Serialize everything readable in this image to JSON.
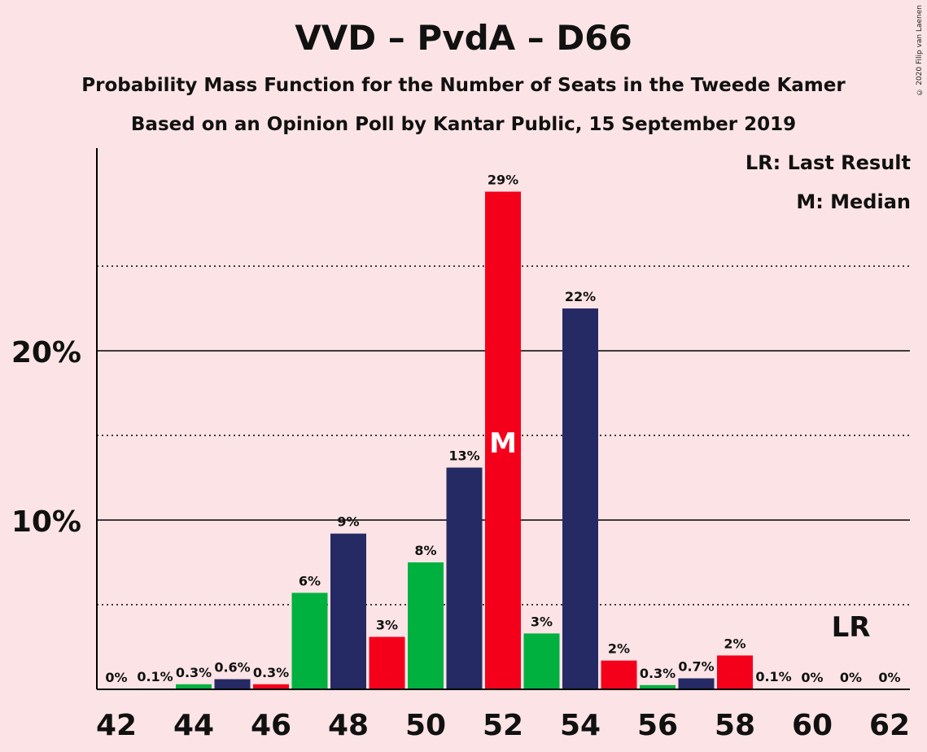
{
  "chart_data": {
    "type": "bar",
    "title": "VVD – PvdA – D66",
    "subtitle": "Probability Mass Function for the Number of Seats in the Tweede Kamer",
    "subtitle2": "Based on an Opinion Poll by Kantar Public, 15 September 2019",
    "copyright": "© 2020 Filip van Laenen",
    "legend": [
      "LR: Last Result",
      "M: Median"
    ],
    "x": [
      42,
      43,
      44,
      45,
      46,
      47,
      48,
      49,
      50,
      51,
      52,
      53,
      54,
      55,
      56,
      57,
      58,
      59,
      60,
      61,
      62
    ],
    "values": [
      0,
      0.05,
      0.3,
      0.6,
      0.3,
      5.7,
      9.2,
      3.1,
      7.5,
      13.1,
      29.4,
      3.3,
      22.5,
      1.7,
      0.25,
      0.65,
      2.0,
      0.05,
      0,
      0,
      0
    ],
    "labels": [
      "0%",
      "0.1%",
      "0.3%",
      "0.6%",
      "0.3%",
      "6%",
      "9%",
      "3%",
      "8%",
      "13%",
      "29%",
      "3%",
      "22%",
      "2%",
      "0.3%",
      "0.7%",
      "2%",
      "0.1%",
      "0%",
      "0%",
      "0%"
    ],
    "bar_colors": [
      "#00b140",
      "#00b140",
      "#00b140",
      "#262a64",
      "#f5001b",
      "#00b140",
      "#262a64",
      "#f5001b",
      "#00b140",
      "#262a64",
      "#f5001b",
      "#00b140",
      "#262a64",
      "#f5001b",
      "#00b140",
      "#262a64",
      "#f5001b",
      "#00b140",
      "#262a64",
      "#f5001b",
      "#00b140"
    ],
    "x_ticks": [
      "42",
      "44",
      "46",
      "48",
      "50",
      "52",
      "54",
      "56",
      "58",
      "60",
      "62"
    ],
    "y_ticks": [
      "10%",
      "20%"
    ],
    "ylim": [
      0,
      32
    ],
    "median_seat": 52,
    "median_label": "M",
    "last_result_seat": 61,
    "last_result_label": "LR",
    "grid": "solid at 10% and 20%, dotted at 5%, 15%, 25%"
  }
}
